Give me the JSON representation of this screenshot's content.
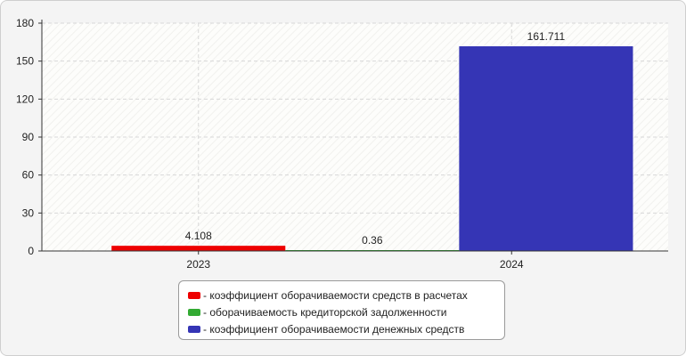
{
  "chart_data": {
    "type": "bar",
    "categories": [
      "2023",
      "2024"
    ],
    "series": [
      {
        "name": "коэффициент оборачиваемости средств в расчетах",
        "color": "#ee0000",
        "values": [
          4.108,
          null
        ],
        "labels": [
          "4.108",
          ""
        ]
      },
      {
        "name": "оборачиваемость кредиторской задолженности",
        "color": "#33aa33",
        "values": [
          0.36,
          null
        ],
        "labels": [
          "0.36",
          ""
        ]
      },
      {
        "name": "коэффициент оборачиваемости денежных средств",
        "color": "#3535b5",
        "values": [
          null,
          161.711
        ],
        "labels": [
          "",
          "161.711"
        ]
      }
    ],
    "yticks": [
      "0",
      "30",
      "60",
      "90",
      "120",
      "150",
      "180"
    ],
    "ylim": [
      0,
      180
    ],
    "grid": true,
    "legend_position": "bottom-center"
  },
  "legend": {
    "prefix": "- ",
    "items": [
      {
        "label": "коэффициент оборачиваемости средств в расчетах",
        "color": "#ee0000"
      },
      {
        "label": "оборачиваемость кредиторской задолженности",
        "color": "#33aa33"
      },
      {
        "label": "коэффициент оборачиваемости денежных средств",
        "color": "#3535b5"
      }
    ]
  }
}
